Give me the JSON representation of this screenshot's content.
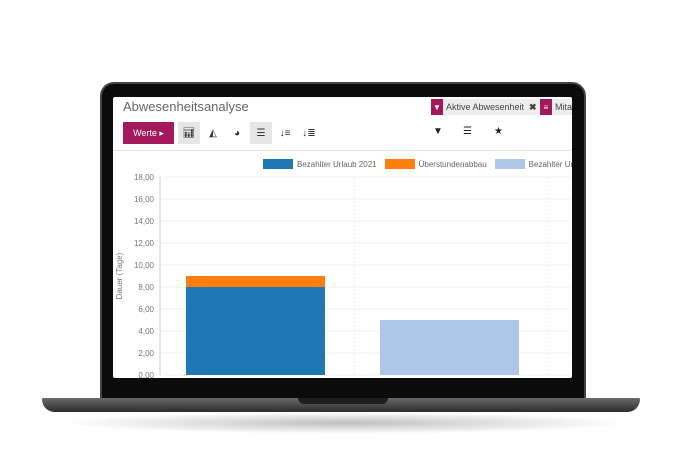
{
  "header": {
    "title": "Abwesenheitsanalyse"
  },
  "facets": [
    {
      "icon": "filter-icon",
      "label": "Aktive Abwesenheit"
    },
    {
      "icon": "group-by-icon",
      "label": "Mita"
    }
  ],
  "toolbar": {
    "measures_label": "Werte",
    "views": [
      "bar-chart-icon",
      "line-chart-icon",
      "pie-chart-icon",
      "stack-icon",
      "sort-desc-icon",
      "sort-asc-icon"
    ],
    "search_tools": [
      "filter-icon",
      "group-by-icon",
      "favorites-icon"
    ]
  },
  "colors": {
    "brand": "#a3195b"
  },
  "chart_data": {
    "type": "bar",
    "stacked": true,
    "ylabel": "Dauer (Tage)",
    "ylim": [
      0,
      18
    ],
    "yticks": [
      "0,00",
      "2,00",
      "4,00",
      "6,00",
      "8,00",
      "10,00",
      "12,00",
      "14,00",
      "16,00",
      "18,00"
    ],
    "grid": true,
    "legend_position": "top",
    "categories": [
      "",
      ""
    ],
    "series": [
      {
        "name": "Bezahlter Urlaub 2021",
        "color": "#1f77b4",
        "values": [
          8,
          0
        ]
      },
      {
        "name": "Überstundenabbau",
        "color": "#ff7f0e",
        "values": [
          1,
          0
        ]
      },
      {
        "name": "Bezahlter Ur",
        "color": "#aec7e8",
        "values": [
          0,
          5
        ]
      }
    ]
  }
}
